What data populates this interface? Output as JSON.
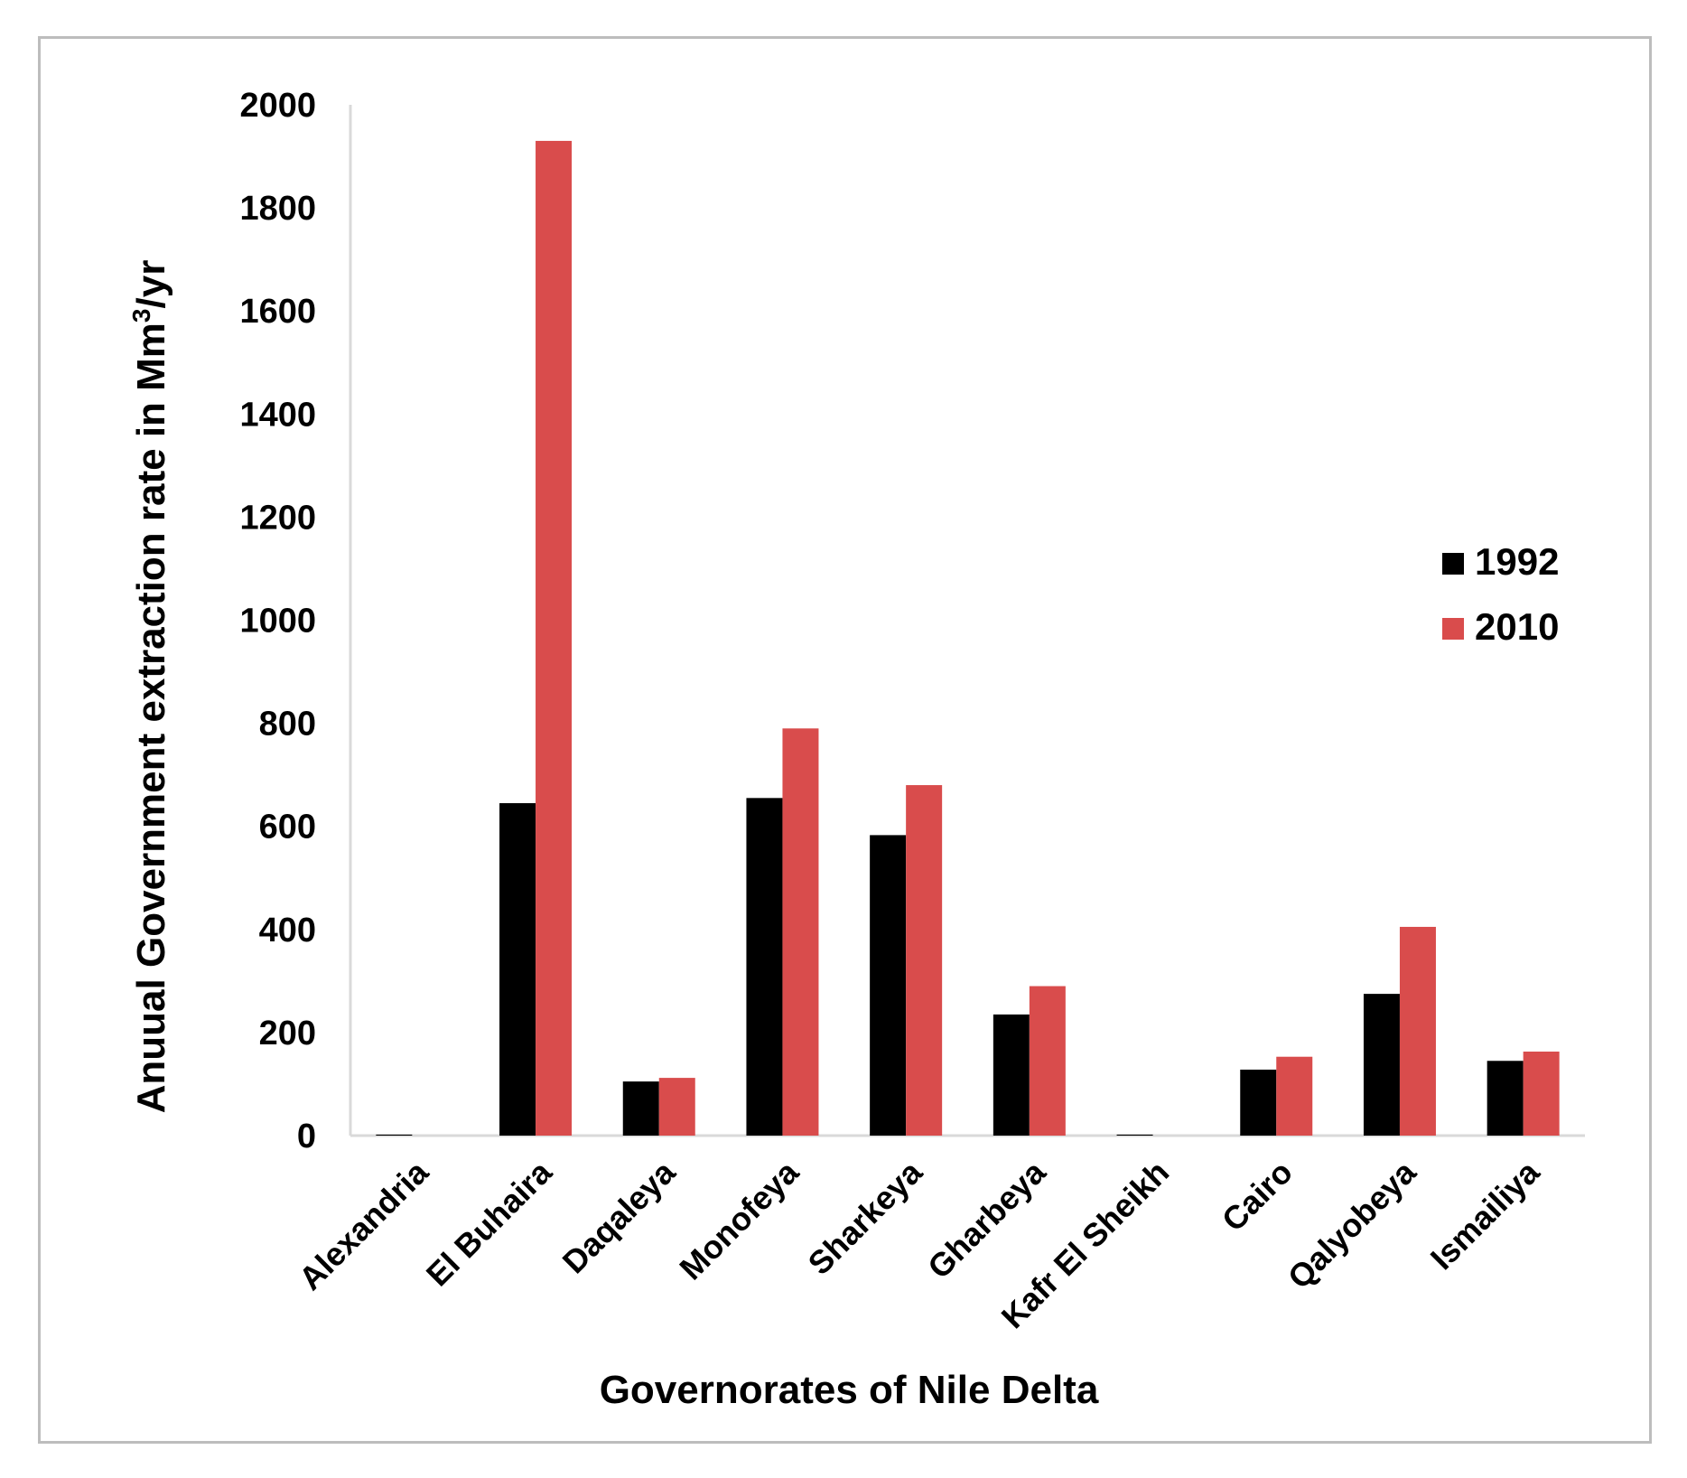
{
  "chart_data": {
    "type": "bar",
    "title": "",
    "xlabel": "Governorates of Nile Delta",
    "ylabel": "Anuual Government  extraction rate  in Mm",
    "ylabel_sup": "3",
    "ylabel_suffix": "/yr",
    "ylim": [
      0,
      2000
    ],
    "yticks": [
      0,
      200,
      400,
      600,
      800,
      1000,
      1200,
      1400,
      1600,
      1800,
      2000
    ],
    "categories": [
      "Alexandria",
      "El Buhaira",
      "Daqaleya",
      "Monofeya",
      "Sharkeya",
      "Gharbeya",
      "Kafr El Sheikh",
      "Cairo",
      "Qalyobeya",
      "Ismailiya"
    ],
    "series": [
      {
        "name": "1992",
        "color": "#000000",
        "values": [
          2,
          645,
          105,
          655,
          583,
          235,
          2,
          128,
          275,
          145
        ]
      },
      {
        "name": "2010",
        "color": "#d94c4c",
        "values": [
          0,
          1930,
          112,
          790,
          680,
          290,
          0,
          153,
          405,
          163
        ]
      }
    ],
    "legend_position": "right",
    "grid": false
  }
}
